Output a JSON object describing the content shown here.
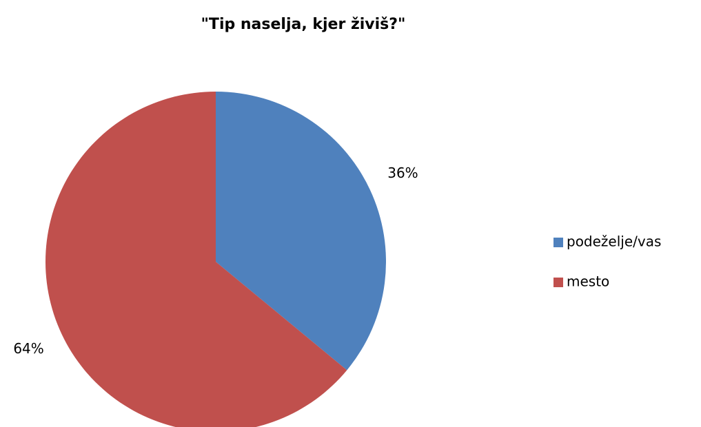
{
  "chart_data": {
    "type": "pie",
    "title": "\"Tip naselja, kjer živiš?\"",
    "categories": [
      "podeželje/vas",
      "mesto"
    ],
    "values": [
      36,
      64
    ],
    "value_labels": [
      "36%",
      "64%"
    ],
    "colors": [
      "#4f81bd",
      "#c0504d"
    ],
    "legend": "right"
  }
}
